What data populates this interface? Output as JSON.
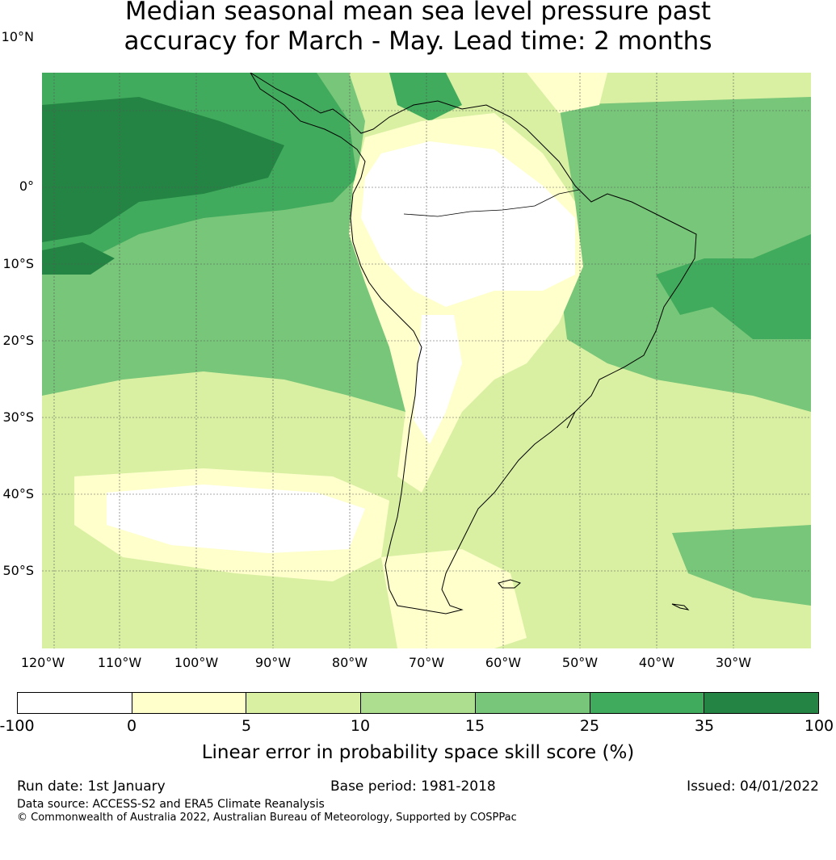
{
  "title_line1": "Median seasonal mean sea level pressure past",
  "title_line2": "accuracy for March - May. Lead time: 2 months",
  "map": {
    "region": "South America",
    "lat_labels": [
      "10°N",
      "0°",
      "10°S",
      "20°S",
      "30°S",
      "40°S",
      "50°S"
    ],
    "lon_labels": [
      "120°W",
      "110°W",
      "100°W",
      "90°W",
      "80°W",
      "70°W",
      "60°W",
      "50°W",
      "40°W",
      "30°W"
    ],
    "lon_range": [
      -122,
      -22
    ],
    "lat_range": [
      -60,
      15
    ],
    "gridlines": true
  },
  "colorbar": {
    "ticks": [
      "-100",
      "0",
      "5",
      "10",
      "15",
      "25",
      "35",
      "100"
    ],
    "colors": [
      "#ffffff",
      "#ffffcc",
      "#d9f0a3",
      "#addd8e",
      "#78c679",
      "#41ab5d",
      "#238443"
    ],
    "label": "Linear error in probability space skill score (%)"
  },
  "footer": {
    "run_date": "Run date: 1st January",
    "base_period": "Base period: 1981-2018",
    "issued": "Issued: 04/01/2022",
    "data_source": "Data source: ACCESS-S2 and ERA5 Climate Reanalysis",
    "copyright": "© Commonwealth of Australia 2022, Australian Bureau of Meteorology, Supported by COSPPac"
  }
}
